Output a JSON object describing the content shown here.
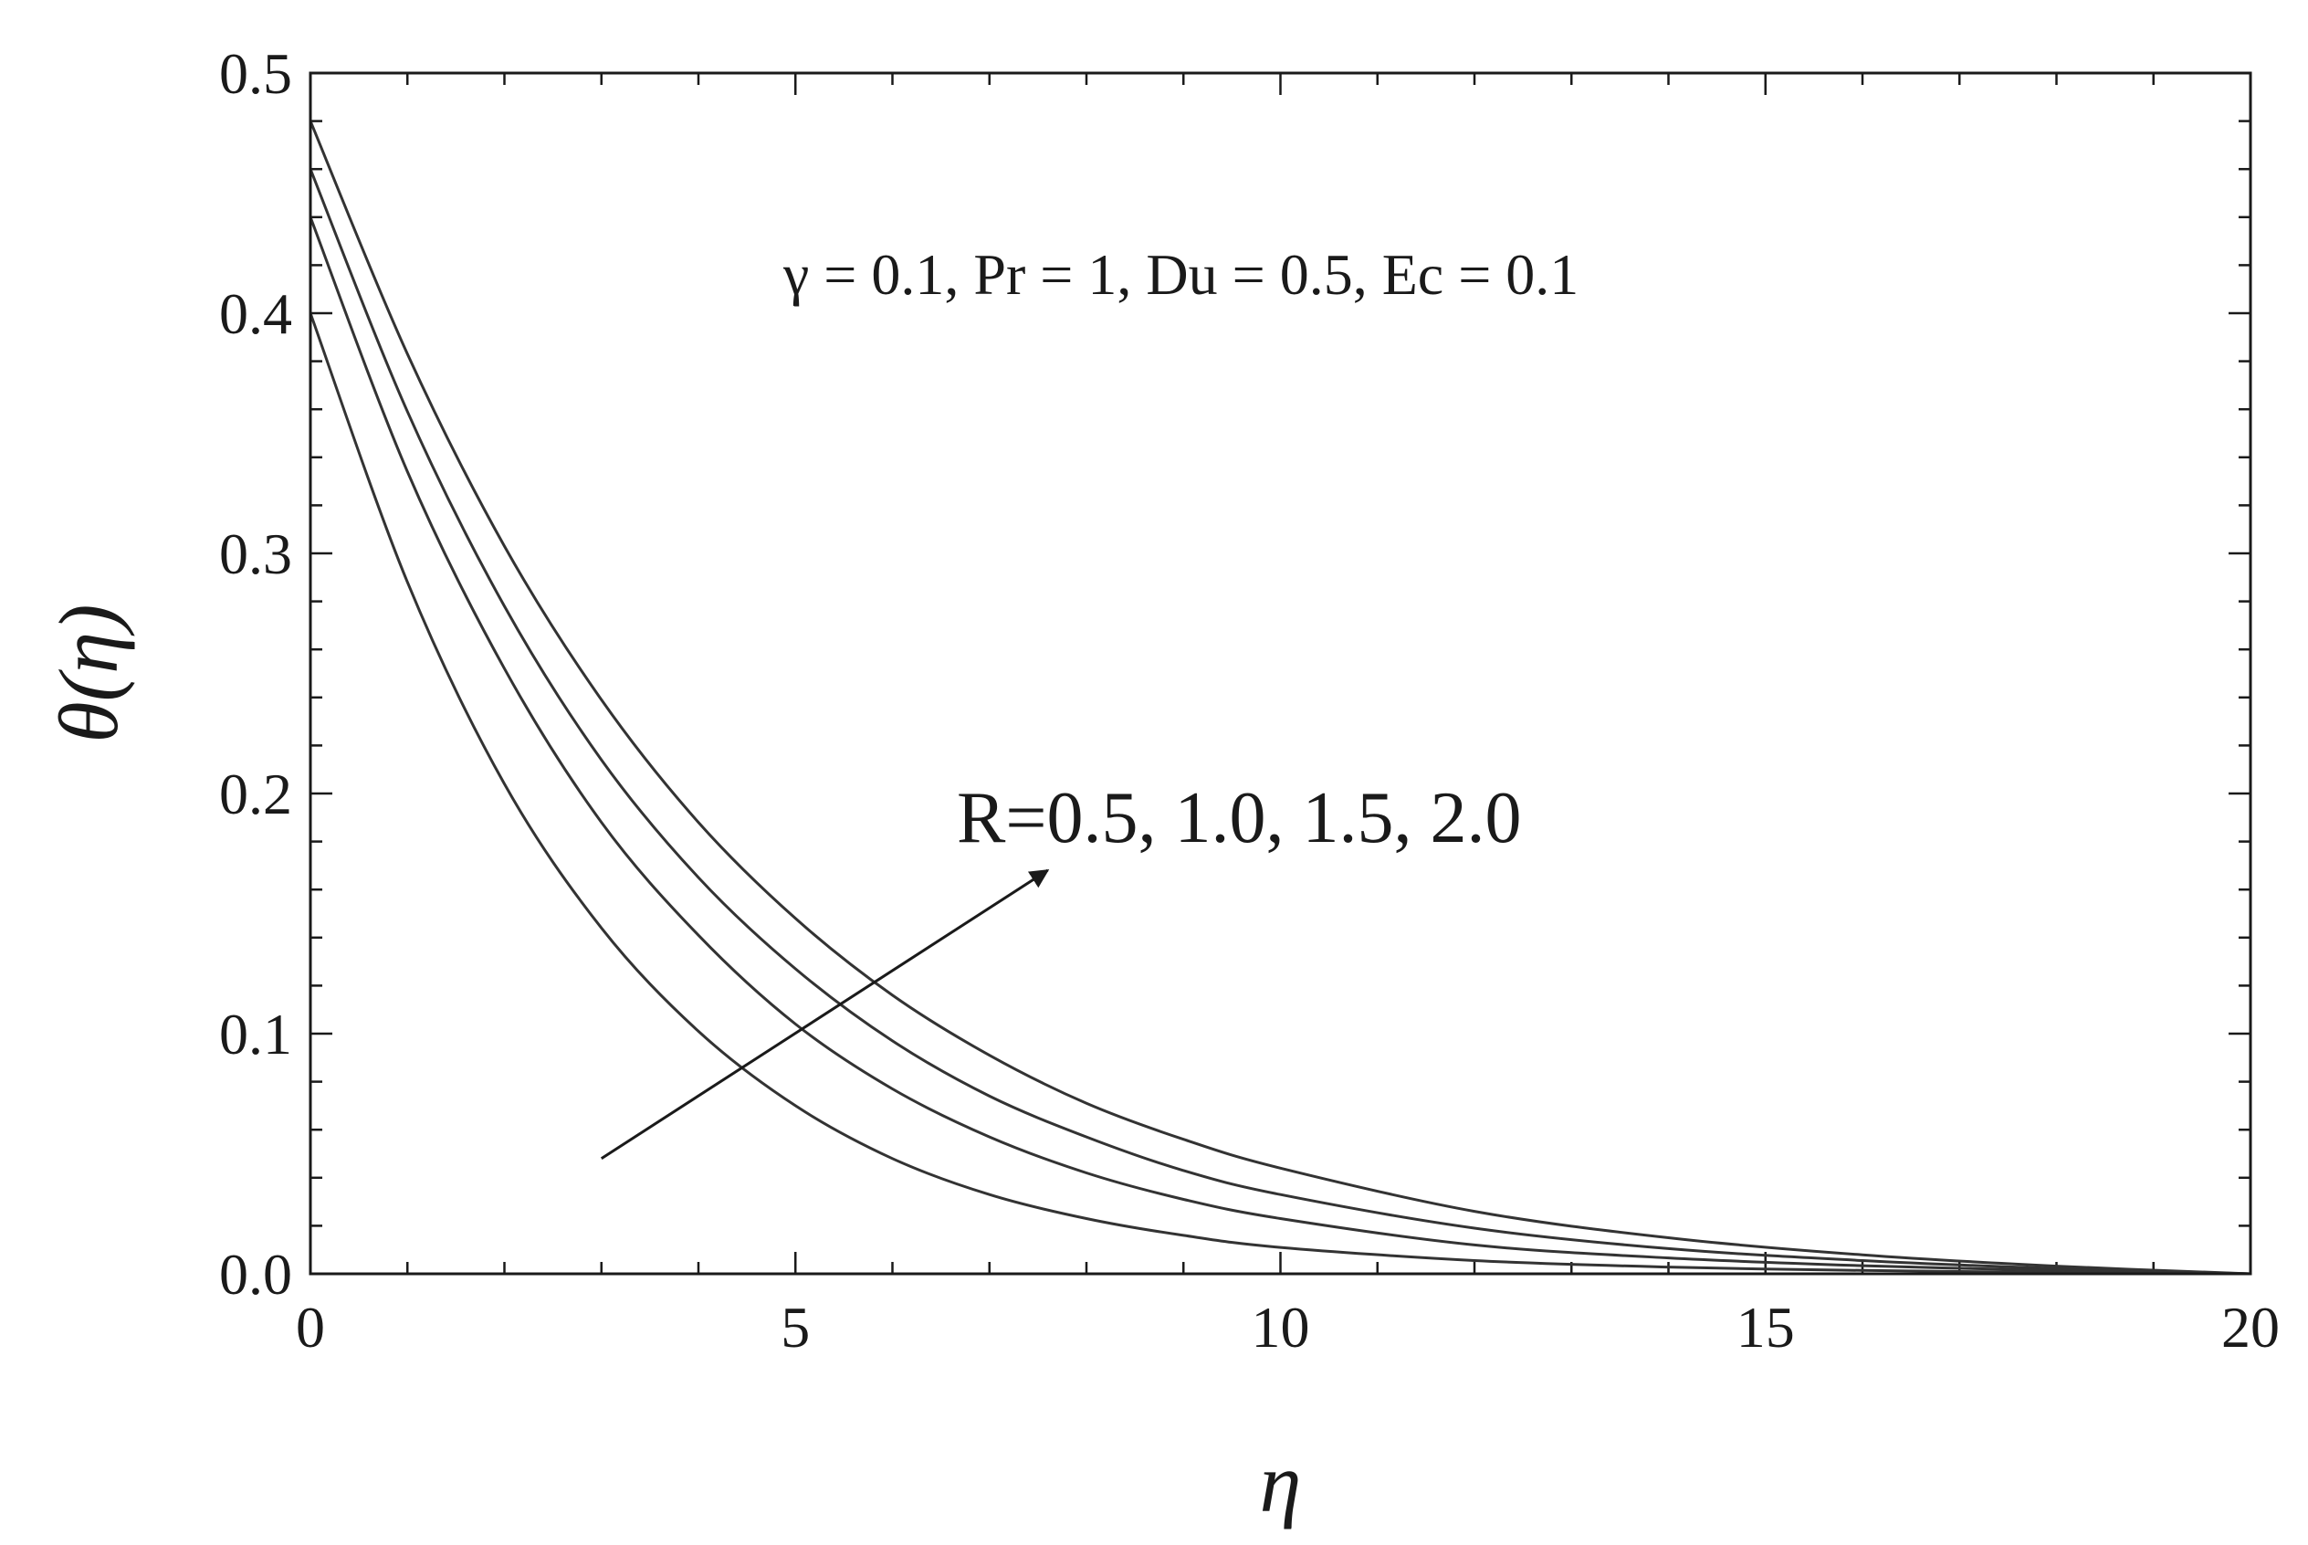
{
  "chart_data": {
    "type": "line",
    "xlabel": "η",
    "ylabel": "θ(η)",
    "xlim": [
      0,
      20
    ],
    "ylim": [
      0,
      0.5
    ],
    "x_ticks": [
      "0",
      "5",
      "10",
      "15",
      "20"
    ],
    "y_ticks": [
      "0.0",
      "0.1",
      "0.2",
      "0.3",
      "0.4",
      "0.5"
    ],
    "grid": false,
    "line_color": "#333333",
    "series": [
      {
        "x": [
          0,
          1,
          2,
          3,
          4,
          5,
          6,
          7,
          8,
          9,
          10,
          12,
          14,
          16,
          18,
          20
        ],
        "values": [
          0.4,
          0.288,
          0.204,
          0.144,
          0.101,
          0.07,
          0.048,
          0.033,
          0.023,
          0.016,
          0.011,
          0.0055,
          0.0028,
          0.0014,
          0.0006,
          0.0
        ]
      },
      {
        "x": [
          0,
          1,
          2,
          3,
          4,
          5,
          6,
          7,
          8,
          9,
          10,
          12,
          14,
          16,
          18,
          20
        ],
        "values": [
          0.44,
          0.334,
          0.252,
          0.188,
          0.141,
          0.104,
          0.077,
          0.057,
          0.042,
          0.031,
          0.023,
          0.012,
          0.0066,
          0.0034,
          0.0014,
          0.0
        ]
      },
      {
        "x": [
          0,
          1,
          2,
          3,
          4,
          5,
          6,
          7,
          8,
          9,
          10,
          12,
          14,
          16,
          18,
          20
        ],
        "values": [
          0.46,
          0.359,
          0.278,
          0.214,
          0.165,
          0.127,
          0.097,
          0.074,
          0.057,
          0.043,
          0.033,
          0.019,
          0.0105,
          0.0055,
          0.0022,
          0.0
        ]
      },
      {
        "x": [
          0,
          1,
          2,
          3,
          4,
          5,
          6,
          7,
          8,
          9,
          10,
          12,
          14,
          16,
          18,
          20
        ],
        "values": [
          0.48,
          0.383,
          0.303,
          0.239,
          0.188,
          0.148,
          0.116,
          0.091,
          0.071,
          0.056,
          0.044,
          0.026,
          0.015,
          0.0079,
          0.0032,
          0.0
        ]
      }
    ],
    "annotations": {
      "params": "γ = 0.1, Pr = 1, Du = 0.5, Ec = 0.1",
      "r_values": "R=0.5, 1.0, 1.5, 2.0",
      "arrow": {
        "from": [
          3,
          0.048
        ],
        "to": [
          7.6,
          0.168
        ]
      }
    }
  }
}
